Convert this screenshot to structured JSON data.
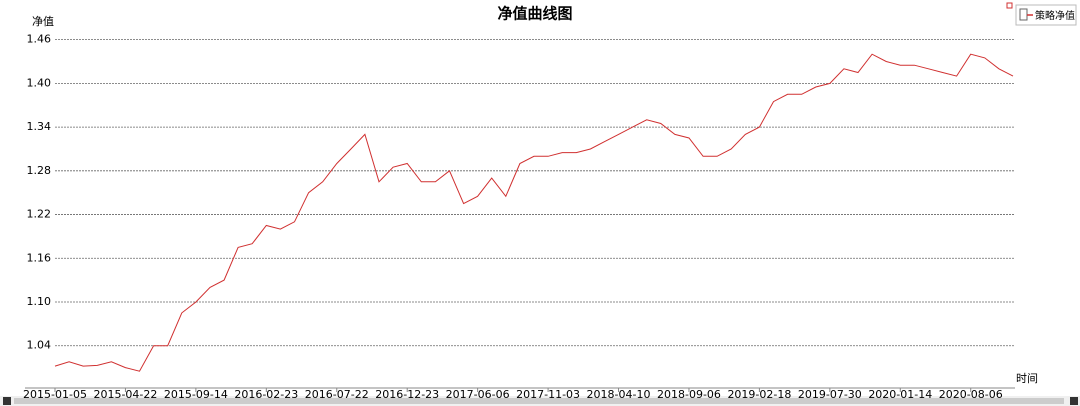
{
  "chart_data": {
    "type": "line",
    "title": "净值曲线图",
    "y_label": "净值",
    "x_label": "时间",
    "categories": [
      "2015-01-05",
      null,
      null,
      null,
      null,
      "2015-04-22",
      null,
      null,
      null,
      null,
      "2015-09-14",
      null,
      null,
      null,
      null,
      "2016-02-23",
      null,
      null,
      null,
      null,
      "2016-07-22",
      null,
      null,
      null,
      null,
      "2016-12-23",
      null,
      null,
      null,
      null,
      "2017-06-06",
      null,
      null,
      null,
      null,
      "2017-11-03",
      null,
      null,
      null,
      null,
      "2018-04-10",
      null,
      null,
      null,
      null,
      "2018-09-06",
      null,
      null,
      null,
      null,
      "2019-02-18",
      null,
      null,
      null,
      null,
      "2019-07-30",
      null,
      null,
      null,
      null,
      "2020-01-14",
      null,
      null,
      null,
      null,
      "2020-08-06",
      null,
      null,
      null
    ],
    "series": [
      {
        "name": "策略净值",
        "color": "#d03030",
        "values": [
          1.012,
          1.018,
          1.012,
          1.013,
          1.018,
          1.01,
          1.005,
          1.04,
          1.04,
          1.085,
          1.1,
          1.12,
          1.13,
          1.175,
          1.18,
          1.205,
          1.2,
          1.21,
          1.25,
          1.265,
          1.29,
          1.31,
          1.33,
          1.265,
          1.285,
          1.29,
          1.265,
          1.265,
          1.28,
          1.235,
          1.245,
          1.27,
          1.245,
          1.29,
          1.3,
          1.3,
          1.305,
          1.305,
          1.31,
          1.32,
          1.33,
          1.34,
          1.35,
          1.345,
          1.33,
          1.325,
          1.3,
          1.3,
          1.31,
          1.33,
          1.34,
          1.375,
          1.385,
          1.385,
          1.395,
          1.4,
          1.42,
          1.415,
          1.44,
          1.43,
          1.425,
          1.425,
          1.42,
          1.415,
          1.41,
          1.44,
          1.435,
          1.42,
          1.41
        ]
      }
    ],
    "ylim": [
      0.982,
      1.476
    ],
    "yticks": [
      1.04,
      {
        "value": 1.1,
        "label": "1.10"
      },
      1.16,
      1.22,
      1.28,
      1.34,
      {
        "value": 1.4,
        "label": "1.40"
      },
      1.46
    ],
    "grid": true,
    "legend": "top-right"
  }
}
